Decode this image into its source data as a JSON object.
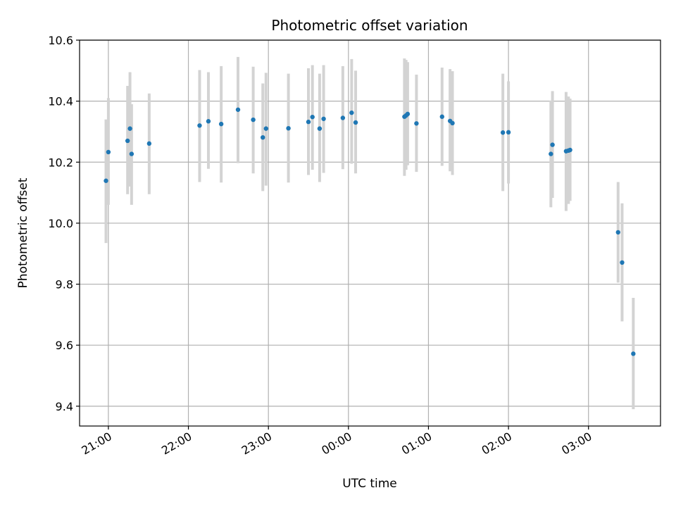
{
  "chart_data": {
    "type": "scatter",
    "title": "Photometric offset variation",
    "xlabel": "UTC time",
    "ylabel": "Photometric offset",
    "x_unit": "hours",
    "xlim": [
      20.64,
      27.9
    ],
    "ylim": [
      9.335,
      10.6
    ],
    "grid": true,
    "x_ticks": [
      {
        "value": 21,
        "label": "21:00"
      },
      {
        "value": 22,
        "label": "22:00"
      },
      {
        "value": 23,
        "label": "23:00"
      },
      {
        "value": 24,
        "label": "00:00"
      },
      {
        "value": 25,
        "label": "01:00"
      },
      {
        "value": 26,
        "label": "02:00"
      },
      {
        "value": 27,
        "label": "03:00"
      }
    ],
    "y_ticks": [
      {
        "value": 9.4,
        "label": "9.4"
      },
      {
        "value": 9.6,
        "label": "9.6"
      },
      {
        "value": 9.8,
        "label": "9.8"
      },
      {
        "value": 10.0,
        "label": "10.0"
      },
      {
        "value": 10.2,
        "label": "10.2"
      },
      {
        "value": 10.4,
        "label": "10.4"
      },
      {
        "value": 10.6,
        "label": "10.6"
      }
    ],
    "colors": {
      "point": "#1f77b4",
      "errorbar": "#d3d3d3",
      "grid": "#b0b0b0"
    },
    "points": [
      {
        "x": 20.97,
        "y": 10.139,
        "ylo": 9.935,
        "yhi": 10.34
      },
      {
        "x": 21.0,
        "y": 10.233,
        "ylo": 10.06,
        "yhi": 10.41
      },
      {
        "x": 21.24,
        "y": 10.27,
        "ylo": 10.095,
        "yhi": 10.45
      },
      {
        "x": 21.27,
        "y": 10.31,
        "ylo": 10.12,
        "yhi": 10.495
      },
      {
        "x": 21.29,
        "y": 10.227,
        "ylo": 10.06,
        "yhi": 10.39
      },
      {
        "x": 21.51,
        "y": 10.261,
        "ylo": 10.095,
        "yhi": 10.425
      },
      {
        "x": 22.14,
        "y": 10.32,
        "ylo": 10.135,
        "yhi": 10.502
      },
      {
        "x": 22.25,
        "y": 10.334,
        "ylo": 10.178,
        "yhi": 10.495
      },
      {
        "x": 22.41,
        "y": 10.325,
        "ylo": 10.133,
        "yhi": 10.515
      },
      {
        "x": 22.62,
        "y": 10.372,
        "ylo": 10.197,
        "yhi": 10.545
      },
      {
        "x": 22.81,
        "y": 10.339,
        "ylo": 10.163,
        "yhi": 10.513
      },
      {
        "x": 22.93,
        "y": 10.281,
        "ylo": 10.105,
        "yhi": 10.458
      },
      {
        "x": 22.97,
        "y": 10.31,
        "ylo": 10.123,
        "yhi": 10.493
      },
      {
        "x": 23.25,
        "y": 10.311,
        "ylo": 10.133,
        "yhi": 10.49
      },
      {
        "x": 23.5,
        "y": 10.332,
        "ylo": 10.158,
        "yhi": 10.508
      },
      {
        "x": 23.55,
        "y": 10.348,
        "ylo": 10.175,
        "yhi": 10.518
      },
      {
        "x": 23.64,
        "y": 10.31,
        "ylo": 10.135,
        "yhi": 10.49
      },
      {
        "x": 23.69,
        "y": 10.342,
        "ylo": 10.165,
        "yhi": 10.518
      },
      {
        "x": 23.93,
        "y": 10.345,
        "ylo": 10.177,
        "yhi": 10.515
      },
      {
        "x": 24.04,
        "y": 10.362,
        "ylo": 10.195,
        "yhi": 10.538
      },
      {
        "x": 24.09,
        "y": 10.33,
        "ylo": 10.163,
        "yhi": 10.5
      },
      {
        "x": 24.7,
        "y": 10.349,
        "ylo": 10.155,
        "yhi": 10.54
      },
      {
        "x": 24.72,
        "y": 10.353,
        "ylo": 10.175,
        "yhi": 10.535
      },
      {
        "x": 24.74,
        "y": 10.358,
        "ylo": 10.19,
        "yhi": 10.528
      },
      {
        "x": 24.85,
        "y": 10.327,
        "ylo": 10.168,
        "yhi": 10.487
      },
      {
        "x": 25.17,
        "y": 10.349,
        "ylo": 10.188,
        "yhi": 10.51
      },
      {
        "x": 25.27,
        "y": 10.335,
        "ylo": 10.17,
        "yhi": 10.505
      },
      {
        "x": 25.3,
        "y": 10.328,
        "ylo": 10.158,
        "yhi": 10.498
      },
      {
        "x": 25.93,
        "y": 10.297,
        "ylo": 10.105,
        "yhi": 10.49
      },
      {
        "x": 26.0,
        "y": 10.298,
        "ylo": 10.13,
        "yhi": 10.465
      },
      {
        "x": 26.53,
        "y": 10.227,
        "ylo": 10.052,
        "yhi": 10.402
      },
      {
        "x": 26.55,
        "y": 10.257,
        "ylo": 10.083,
        "yhi": 10.433
      },
      {
        "x": 26.72,
        "y": 10.236,
        "ylo": 10.04,
        "yhi": 10.43
      },
      {
        "x": 26.75,
        "y": 10.238,
        "ylo": 10.063,
        "yhi": 10.415
      },
      {
        "x": 26.77,
        "y": 10.24,
        "ylo": 10.073,
        "yhi": 10.408
      },
      {
        "x": 27.37,
        "y": 9.97,
        "ylo": 9.805,
        "yhi": 10.135
      },
      {
        "x": 27.42,
        "y": 9.871,
        "ylo": 9.678,
        "yhi": 10.065
      },
      {
        "x": 27.56,
        "y": 9.572,
        "ylo": 9.39,
        "yhi": 9.755
      }
    ]
  }
}
